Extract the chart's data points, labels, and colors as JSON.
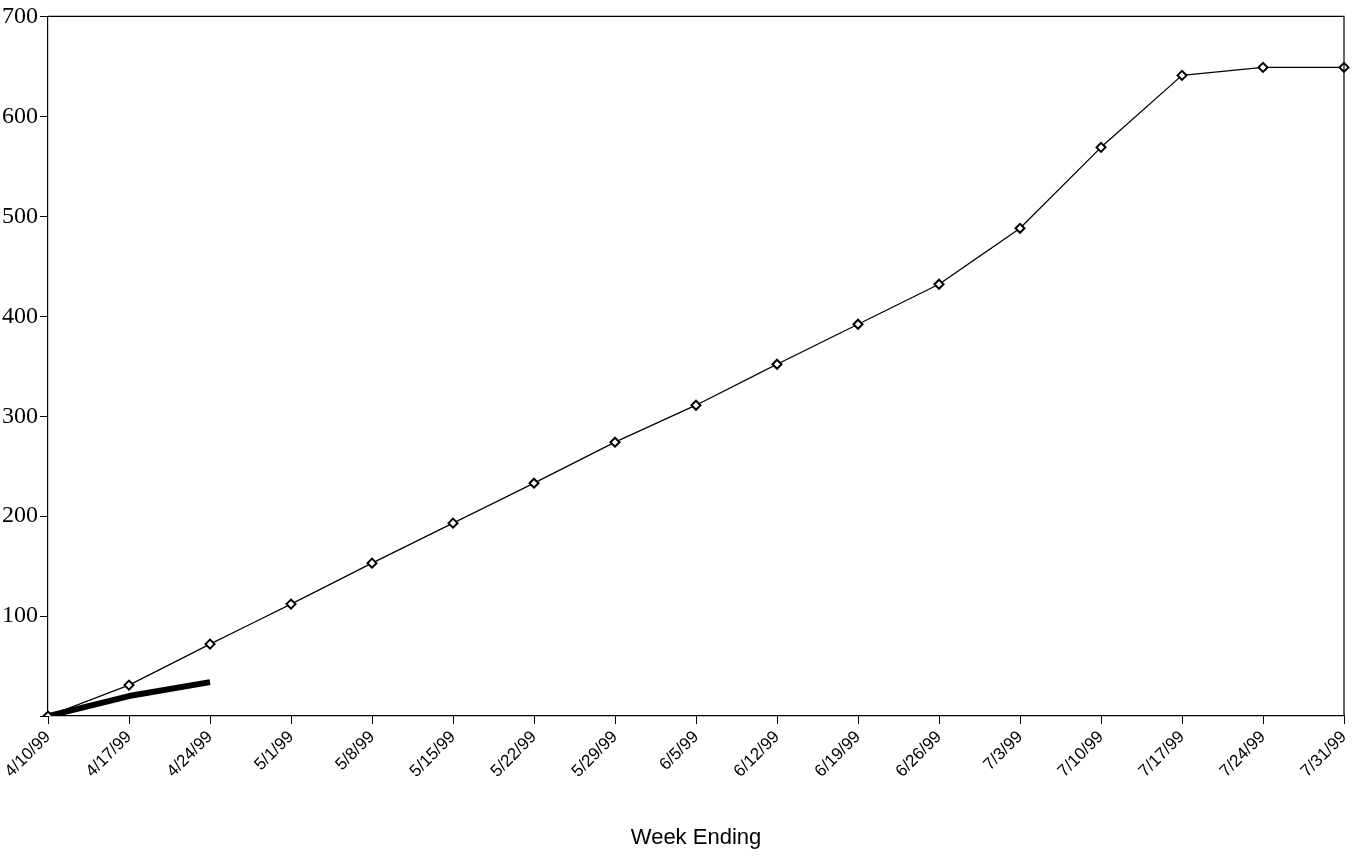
{
  "chart_data": {
    "type": "line",
    "xlabel": "Week Ending",
    "categories": [
      "4/10/99",
      "4/17/99",
      "4/24/99",
      "5/1/99",
      "5/8/99",
      "5/15/99",
      "5/22/99",
      "5/29/99",
      "6/5/99",
      "6/12/99",
      "6/19/99",
      "6/26/99",
      "7/3/99",
      "7/10/99",
      "7/17/99",
      "7/24/99",
      "7/31/99"
    ],
    "series": [
      {
        "color": "#000000",
        "marker": "diamond",
        "values": [
          0,
          31,
          72,
          112,
          153,
          193,
          233,
          274,
          311,
          352,
          392,
          432,
          488,
          569,
          641,
          649,
          649
        ]
      },
      {
        "color": "#000000",
        "marker": "none",
        "values": [
          0,
          20,
          34,
          null,
          null,
          null,
          null,
          null,
          null,
          null,
          null,
          null,
          null,
          null,
          null,
          null,
          null
        ]
      }
    ],
    "ylim": [
      0,
      700
    ],
    "yticks": [
      {
        "value": 0,
        "label": null
      },
      100,
      200,
      300,
      400,
      500,
      600,
      700
    ],
    "grid": false,
    "legend": false
  }
}
